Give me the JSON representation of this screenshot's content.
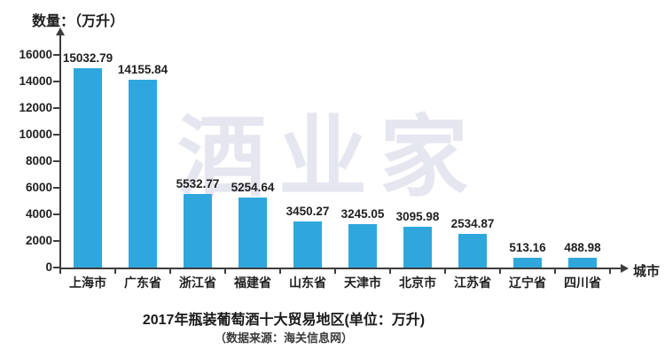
{
  "page": {
    "background_color": "#ffffff"
  },
  "chart_data": {
    "type": "bar",
    "title": "2017年瓶装葡萄酒十大贸易地区(单位：万升)",
    "subtitle": "（数据来源：海关信息网）",
    "ylabel": "数量：（万升）",
    "xlabel": "城市",
    "watermark": "酒业家",
    "categories": [
      "上海市",
      "广东省",
      "浙江省",
      "福建省",
      "山东省",
      "天津市",
      "北京市",
      "江苏省",
      "辽宁省",
      "四川省"
    ],
    "values": [
      15032.79,
      14155.84,
      5532.77,
      5254.64,
      3450.27,
      3245.05,
      3095.98,
      2534.87,
      513.16,
      488.98
    ],
    "value_labels": [
      "15032.79",
      "14155.84",
      "5532.77",
      "5254.64",
      "3450.27",
      "3245.05",
      "3095.98",
      "2534.87",
      "513.16",
      "488.98"
    ],
    "ylim": [
      0,
      16000
    ],
    "yticks": [
      0,
      2000,
      4000,
      6000,
      8000,
      10000,
      12000,
      14000,
      16000
    ],
    "grid": false,
    "legend_position": "none",
    "bar_color": "#2fa7dd",
    "axis_color": "#3d3d3d",
    "text_color": "#1f1f1f",
    "watermark_color": "#e6e6f0"
  }
}
